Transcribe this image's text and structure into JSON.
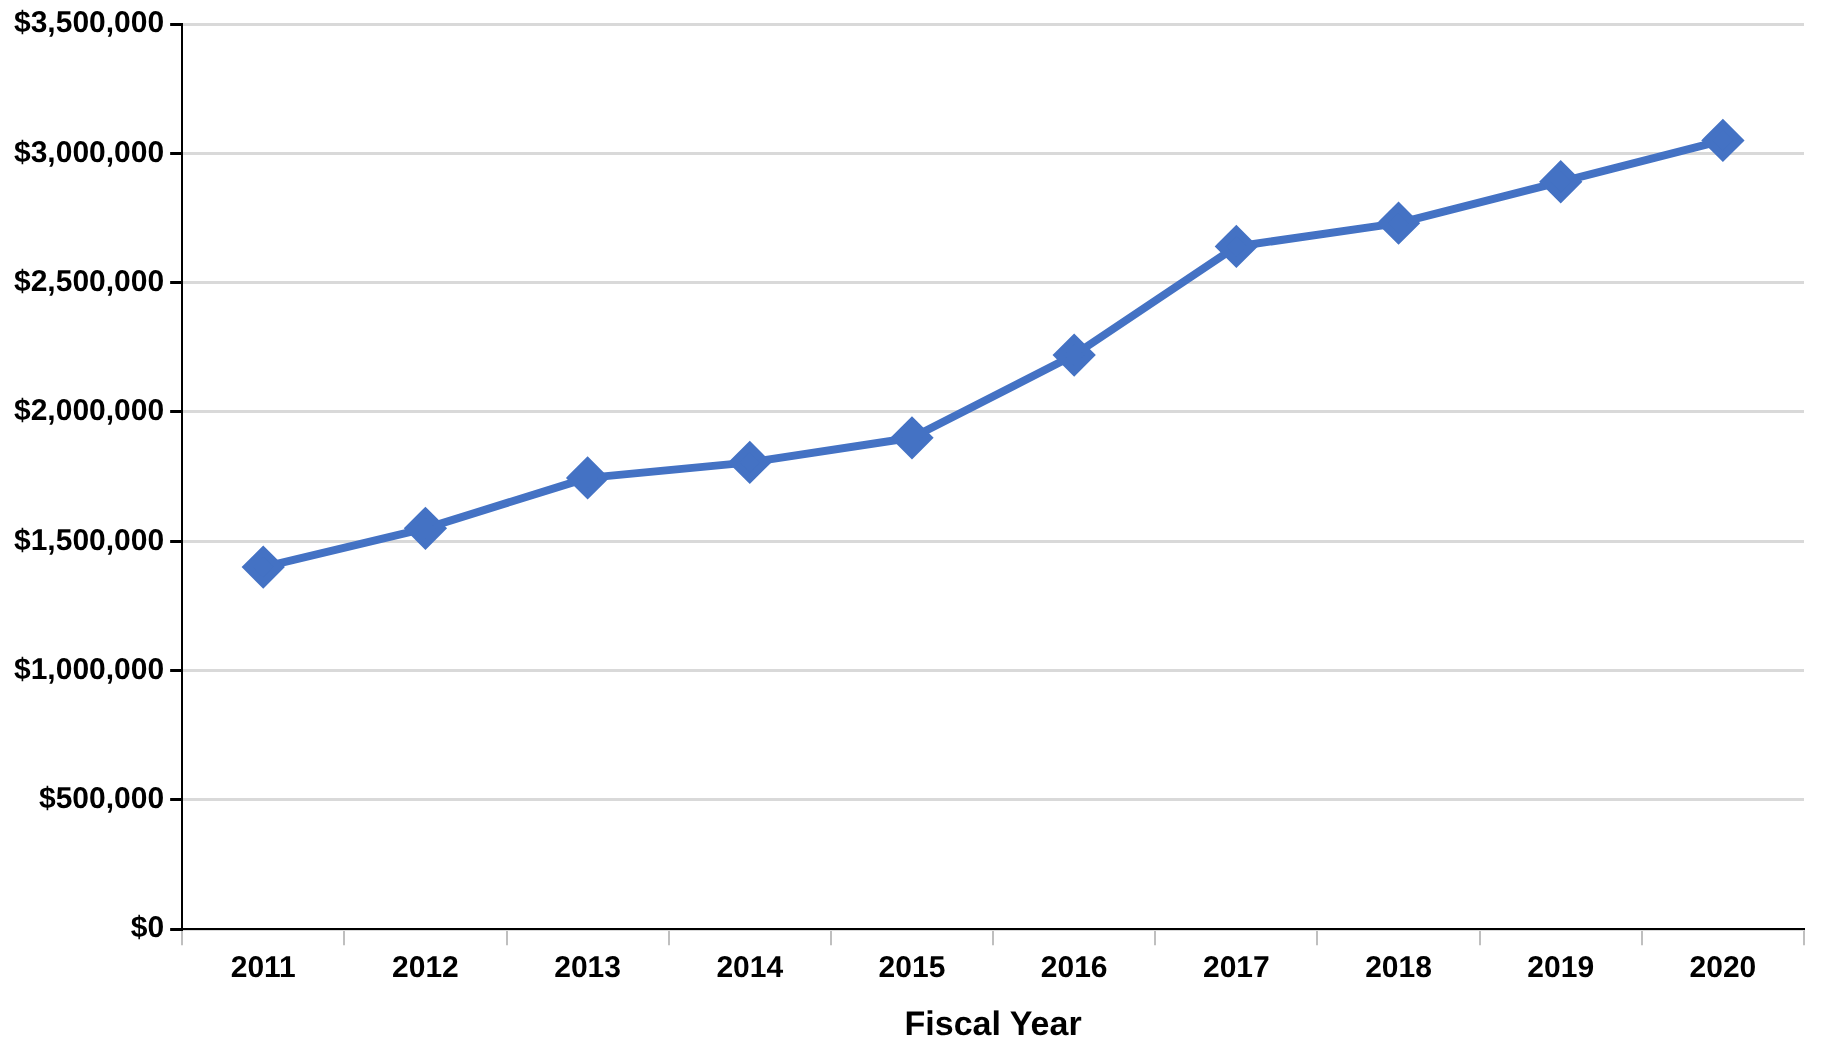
{
  "chart_data": {
    "type": "line",
    "xlabel": "Fiscal Year",
    "categories": [
      "2011",
      "2012",
      "2013",
      "2014",
      "2015",
      "2016",
      "2017",
      "2018",
      "2019",
      "2020"
    ],
    "series": [
      {
        "color": "#4472c4",
        "values": [
          1400000,
          1550000,
          1745000,
          1805000,
          1900000,
          2220000,
          2640000,
          2730000,
          2890000,
          3050000
        ]
      }
    ],
    "ylim": [
      0,
      3500000
    ],
    "yticks": [
      {
        "value": 0,
        "label": "$0"
      },
      {
        "value": 500000,
        "label": "$500,000"
      },
      {
        "value": 1000000,
        "label": "$1,000,000"
      },
      {
        "value": 1500000,
        "label": "$1,500,000"
      },
      {
        "value": 2000000,
        "label": "$2,000,000"
      },
      {
        "value": 2500000,
        "label": "$2,500,000"
      },
      {
        "value": 3000000,
        "label": "$3,000,000"
      },
      {
        "value": 3500000,
        "label": "$3,500,000"
      }
    ],
    "grid": "y",
    "legend": false,
    "marker": "diamond",
    "line_style": "solid"
  }
}
